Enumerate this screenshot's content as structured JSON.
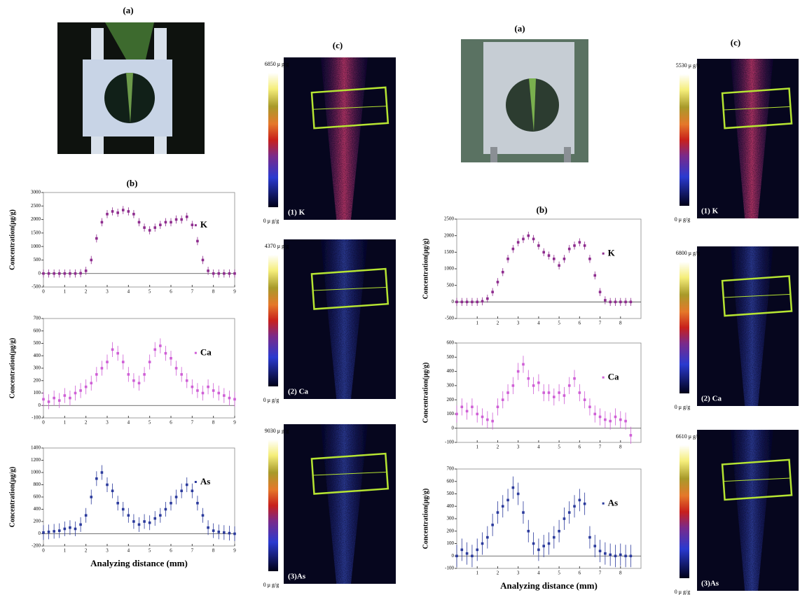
{
  "figure": {
    "left": {
      "photo_label": "(a)",
      "map_label": "(c)",
      "maps": [
        {
          "max": "6850 μ g/g",
          "min": "0 μ g/g",
          "label": "(1)  K"
        },
        {
          "max": "4370 μ g/g",
          "min": "0 μ g/g",
          "label": "(2)  Ca"
        },
        {
          "max": "9030 μ g/g",
          "min": "0 μ g/g",
          "label": "(3)As"
        }
      ]
    },
    "right": {
      "photo_label": "(a)",
      "map_label": "(c)",
      "maps": [
        {
          "max": "5530 μ g/g",
          "min": "0 μ g/g",
          "label": "(1)  K"
        },
        {
          "max": "6800 μ g/g",
          "min": "0 μ g/g",
          "label": "(2)  Ca"
        },
        {
          "max": "6610 μ g/g",
          "min": "0 μ g/g",
          "label": "(3)As"
        }
      ]
    }
  },
  "chart_data": [
    {
      "type": "scatter",
      "title": "(b)",
      "ylabel": "Concentration(μg/g)",
      "x": [
        0,
        0.25,
        0.5,
        0.75,
        1,
        1.25,
        1.5,
        1.75,
        2,
        2.25,
        2.5,
        2.75,
        3,
        3.25,
        3.5,
        3.75,
        4,
        4.25,
        4.5,
        4.75,
        5,
        5.25,
        5.5,
        5.75,
        6,
        6.25,
        6.5,
        6.75,
        7,
        7.25,
        7.5,
        7.75,
        8,
        8.25,
        8.5,
        8.75,
        9
      ],
      "series": [
        {
          "name": "K",
          "color": "#8e2c8e",
          "error": 150,
          "values": [
            0,
            0,
            0,
            0,
            0,
            0,
            0,
            10,
            100,
            500,
            1300,
            1900,
            2200,
            2300,
            2250,
            2350,
            2300,
            2200,
            1900,
            1700,
            1600,
            1700,
            1800,
            1900,
            1900,
            2000,
            2000,
            2100,
            1800,
            1200,
            500,
            100,
            0,
            0,
            0,
            0,
            0
          ]
        }
      ],
      "xlim": [
        0,
        9
      ],
      "xticks": [
        0,
        1,
        2,
        3,
        4,
        5,
        6,
        7,
        8,
        9
      ],
      "ylim": [
        -500,
        3000
      ],
      "yticks": [
        -500,
        0,
        500,
        1000,
        1500,
        2000,
        2500,
        3000
      ]
    },
    {
      "type": "scatter",
      "ylabel": "Concentration(μg/g)",
      "x": [
        0,
        0.25,
        0.5,
        0.75,
        1,
        1.25,
        1.5,
        1.75,
        2,
        2.25,
        2.5,
        2.75,
        3,
        3.25,
        3.5,
        3.75,
        4,
        4.25,
        4.5,
        4.75,
        5,
        5.25,
        5.5,
        5.75,
        6,
        6.25,
        6.5,
        6.75,
        7,
        7.25,
        7.5,
        7.75,
        8,
        8.25,
        8.5,
        8.75,
        9
      ],
      "series": [
        {
          "name": "Ca",
          "color": "#cf5fd6",
          "error": 60,
          "values": [
            50,
            30,
            60,
            40,
            80,
            60,
            100,
            120,
            150,
            180,
            250,
            300,
            350,
            450,
            420,
            350,
            250,
            200,
            180,
            250,
            350,
            450,
            480,
            420,
            380,
            300,
            250,
            200,
            150,
            120,
            100,
            150,
            120,
            100,
            80,
            60,
            50
          ]
        }
      ],
      "xlim": [
        0,
        9
      ],
      "xticks": [
        0,
        1,
        2,
        3,
        4,
        5,
        6,
        7,
        8,
        9
      ],
      "ylim": [
        -100,
        700
      ],
      "yticks": [
        -100,
        0,
        100,
        200,
        300,
        400,
        500,
        600,
        700
      ]
    },
    {
      "type": "scatter",
      "ylabel": "Concentration(μg/g)",
      "xlabel": "Analyzing distance (mm)",
      "x": [
        0,
        0.25,
        0.5,
        0.75,
        1,
        1.25,
        1.5,
        1.75,
        2,
        2.25,
        2.5,
        2.75,
        3,
        3.25,
        3.5,
        3.75,
        4,
        4.25,
        4.5,
        4.75,
        5,
        5.25,
        5.5,
        5.75,
        6,
        6.25,
        6.5,
        6.75,
        7,
        7.25,
        7.5,
        7.75,
        8,
        8.25,
        8.5,
        8.75,
        9
      ],
      "series": [
        {
          "name": "As",
          "color": "#2b3a9c",
          "error": 120,
          "values": [
            20,
            30,
            40,
            50,
            80,
            100,
            80,
            150,
            300,
            600,
            900,
            1000,
            800,
            700,
            500,
            400,
            300,
            200,
            150,
            200,
            180,
            250,
            300,
            400,
            500,
            600,
            700,
            800,
            700,
            500,
            300,
            100,
            50,
            30,
            20,
            10,
            0
          ]
        }
      ],
      "xlim": [
        0,
        9
      ],
      "xticks": [
        0,
        1,
        2,
        3,
        4,
        5,
        6,
        7,
        8,
        9
      ],
      "ylim": [
        -200,
        1400
      ],
      "yticks": [
        -200,
        0,
        200,
        400,
        600,
        800,
        1000,
        1200,
        1400
      ]
    },
    {
      "type": "scatter",
      "title": "(b)",
      "ylabel": "Concentration(μg/g)",
      "x": [
        0,
        0.25,
        0.5,
        0.75,
        1,
        1.25,
        1.5,
        1.75,
        2,
        2.25,
        2.5,
        2.75,
        3,
        3.25,
        3.5,
        3.75,
        4,
        4.25,
        4.5,
        4.75,
        5,
        5.25,
        5.5,
        5.75,
        6,
        6.25,
        6.5,
        6.75,
        7,
        7.25,
        7.5,
        7.75,
        8,
        8.25,
        8.5
      ],
      "series": [
        {
          "name": "K",
          "color": "#8e2c8e",
          "error": 120,
          "values": [
            0,
            0,
            0,
            0,
            0,
            20,
            100,
            300,
            600,
            900,
            1300,
            1600,
            1800,
            1900,
            2000,
            1900,
            1700,
            1500,
            1400,
            1300,
            1100,
            1300,
            1600,
            1700,
            1800,
            1700,
            1300,
            800,
            300,
            50,
            0,
            0,
            0,
            0,
            0
          ]
        }
      ],
      "xlim": [
        0,
        9
      ],
      "xticks": [
        1,
        2,
        3,
        4,
        5,
        6,
        7,
        8
      ],
      "ylim": [
        -500,
        2500
      ],
      "yticks": [
        -500,
        0,
        500,
        1000,
        1500,
        2000,
        2500
      ]
    },
    {
      "type": "scatter",
      "ylabel": "Concentration(μg/g)",
      "x": [
        0,
        0.25,
        0.5,
        0.75,
        1,
        1.25,
        1.5,
        1.75,
        2,
        2.25,
        2.5,
        2.75,
        3,
        3.25,
        3.5,
        3.75,
        4,
        4.25,
        4.5,
        4.75,
        5,
        5.25,
        5.5,
        5.75,
        6,
        6.25,
        6.5,
        6.75,
        7,
        7.25,
        7.5,
        7.75,
        8,
        8.25,
        8.5
      ],
      "series": [
        {
          "name": "Ca",
          "color": "#cf5fd6",
          "error": 60,
          "values": [
            100,
            150,
            120,
            150,
            100,
            80,
            60,
            50,
            150,
            200,
            250,
            300,
            400,
            450,
            350,
            300,
            320,
            250,
            250,
            220,
            250,
            230,
            300,
            350,
            250,
            200,
            150,
            100,
            80,
            60,
            50,
            80,
            60,
            50,
            -50
          ]
        }
      ],
      "xlim": [
        0,
        9
      ],
      "xticks": [
        1,
        2,
        3,
        4,
        5,
        6,
        7,
        8
      ],
      "ylim": [
        -100,
        600
      ],
      "yticks": [
        -100,
        0,
        100,
        200,
        300,
        400,
        500,
        600
      ]
    },
    {
      "type": "scatter",
      "ylabel": "Concentration(μg/g)",
      "xlabel": "Analyzing distance (mm)",
      "x": [
        0,
        0.25,
        0.5,
        0.75,
        1,
        1.25,
        1.5,
        1.75,
        2,
        2.25,
        2.5,
        2.75,
        3,
        3.25,
        3.5,
        3.75,
        4,
        4.25,
        4.5,
        4.75,
        5,
        5.25,
        5.5,
        5.75,
        6,
        6.25,
        6.5,
        6.75,
        7,
        7.25,
        7.5,
        7.75,
        8,
        8.25,
        8.5
      ],
      "series": [
        {
          "name": "As",
          "color": "#2b3a9c",
          "error": 90,
          "values": [
            0,
            50,
            20,
            0,
            50,
            100,
            150,
            250,
            350,
            400,
            450,
            550,
            500,
            350,
            200,
            100,
            50,
            80,
            100,
            150,
            200,
            300,
            350,
            400,
            450,
            420,
            150,
            80,
            40,
            20,
            10,
            0,
            10,
            0,
            0
          ]
        }
      ],
      "xlim": [
        0,
        9
      ],
      "xticks": [
        1,
        2,
        3,
        4,
        5,
        6,
        7,
        8
      ],
      "ylim": [
        -100,
        700
      ],
      "yticks": [
        -100,
        0,
        100,
        200,
        300,
        400,
        500,
        600,
        700
      ]
    }
  ]
}
